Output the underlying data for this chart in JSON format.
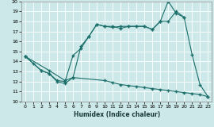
{
  "xlabel": "Humidex (Indice chaleur)",
  "xlim": [
    -0.5,
    23.5
  ],
  "ylim": [
    10,
    20
  ],
  "xticks": [
    0,
    1,
    2,
    3,
    4,
    5,
    6,
    7,
    8,
    9,
    10,
    11,
    12,
    13,
    14,
    15,
    16,
    17,
    18,
    19,
    20,
    21,
    22,
    23
  ],
  "yticks": [
    10,
    11,
    12,
    13,
    14,
    15,
    16,
    17,
    18,
    19,
    20
  ],
  "bg_color": "#cce8e8",
  "grid_color": "#b8d8d8",
  "line_color": "#1a6e6a",
  "line1_x": [
    0,
    1,
    2,
    3,
    4,
    5,
    6,
    7,
    8,
    9,
    10,
    11,
    12,
    13,
    14,
    15,
    16,
    17,
    18,
    19,
    20,
    21,
    22,
    23
  ],
  "line1_y": [
    14.5,
    13.8,
    13.1,
    12.8,
    12.0,
    11.8,
    12.4,
    15.5,
    16.5,
    17.7,
    17.5,
    17.5,
    17.3,
    17.5,
    17.5,
    17.5,
    17.2,
    18.0,
    20.0,
    18.8,
    18.4,
    14.7,
    11.7,
    10.5
  ],
  "line2_x": [
    0,
    2,
    3,
    4,
    5,
    6,
    7,
    8,
    9,
    10,
    11,
    12,
    13,
    14,
    15,
    16,
    17,
    18,
    19,
    20
  ],
  "line2_y": [
    14.5,
    13.1,
    12.8,
    12.1,
    12.0,
    14.6,
    15.3,
    16.5,
    17.7,
    17.5,
    17.4,
    17.5,
    17.5,
    17.5,
    17.5,
    17.2,
    18.0,
    18.0,
    19.0,
    18.4
  ],
  "line3_x": [
    0,
    3,
    5,
    6,
    10,
    11,
    12,
    13,
    14,
    15,
    16,
    17,
    18,
    19,
    20,
    21,
    22,
    23
  ],
  "line3_y": [
    14.5,
    13.1,
    12.1,
    12.4,
    12.1,
    11.9,
    11.7,
    11.6,
    11.5,
    11.4,
    11.3,
    11.2,
    11.1,
    11.0,
    10.9,
    10.8,
    10.7,
    10.5
  ]
}
